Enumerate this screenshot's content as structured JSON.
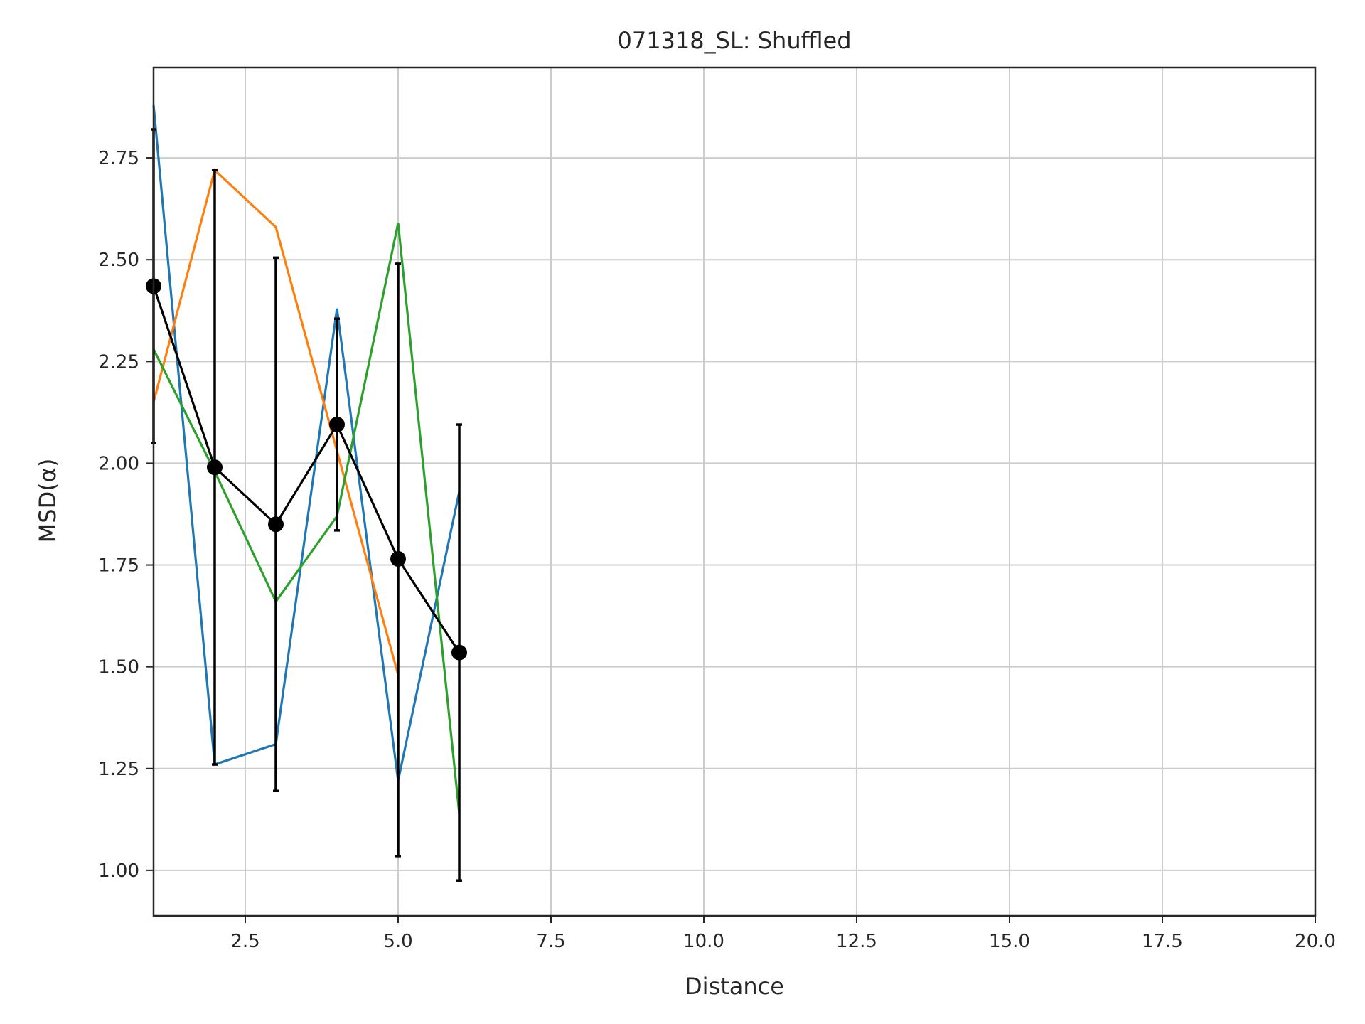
{
  "chart_data": {
    "type": "line",
    "title": "071318_SL: Shuffled",
    "xlabel": "Distance",
    "ylabel": "MSD(α)",
    "xlim": [
      1,
      20
    ],
    "ylim": [
      0.888,
      2.972
    ],
    "xticks": [
      2.5,
      5.0,
      7.5,
      10.0,
      12.5,
      15.0,
      17.5,
      20.0
    ],
    "xtick_labels": [
      "2.5",
      "5.0",
      "7.5",
      "10.0",
      "12.5",
      "15.0",
      "17.5",
      "20.0"
    ],
    "yticks": [
      1.0,
      1.25,
      1.5,
      1.75,
      2.0,
      2.25,
      2.5,
      2.75
    ],
    "ytick_labels": [
      "1.00",
      "1.25",
      "1.50",
      "1.75",
      "2.00",
      "2.25",
      "2.50",
      "2.75"
    ],
    "grid": true,
    "series": [
      {
        "color": "#1f77b4",
        "x": [
          1,
          2,
          3,
          4,
          5,
          6
        ],
        "values": [
          2.88,
          1.26,
          1.31,
          2.38,
          1.22,
          1.93
        ]
      },
      {
        "color": "#ff7f0e",
        "x": [
          1,
          2,
          3,
          4,
          5
        ],
        "values": [
          2.15,
          2.72,
          2.58,
          2.03,
          1.48
        ]
      },
      {
        "color": "#2ca02c",
        "x": [
          1,
          2,
          3,
          4,
          5,
          6
        ],
        "values": [
          2.28,
          1.98,
          1.66,
          1.87,
          2.59,
          1.14
        ]
      }
    ],
    "mean_series": {
      "color": "#000000",
      "x": [
        1,
        2,
        3,
        4,
        5,
        6
      ],
      "values": [
        2.435,
        1.99,
        1.85,
        2.095,
        1.765,
        1.535
      ],
      "yerr_low": [
        2.05,
        1.26,
        1.195,
        1.835,
        1.035,
        0.975
      ],
      "yerr_high": [
        2.82,
        2.72,
        2.505,
        2.355,
        2.49,
        2.095
      ]
    }
  }
}
